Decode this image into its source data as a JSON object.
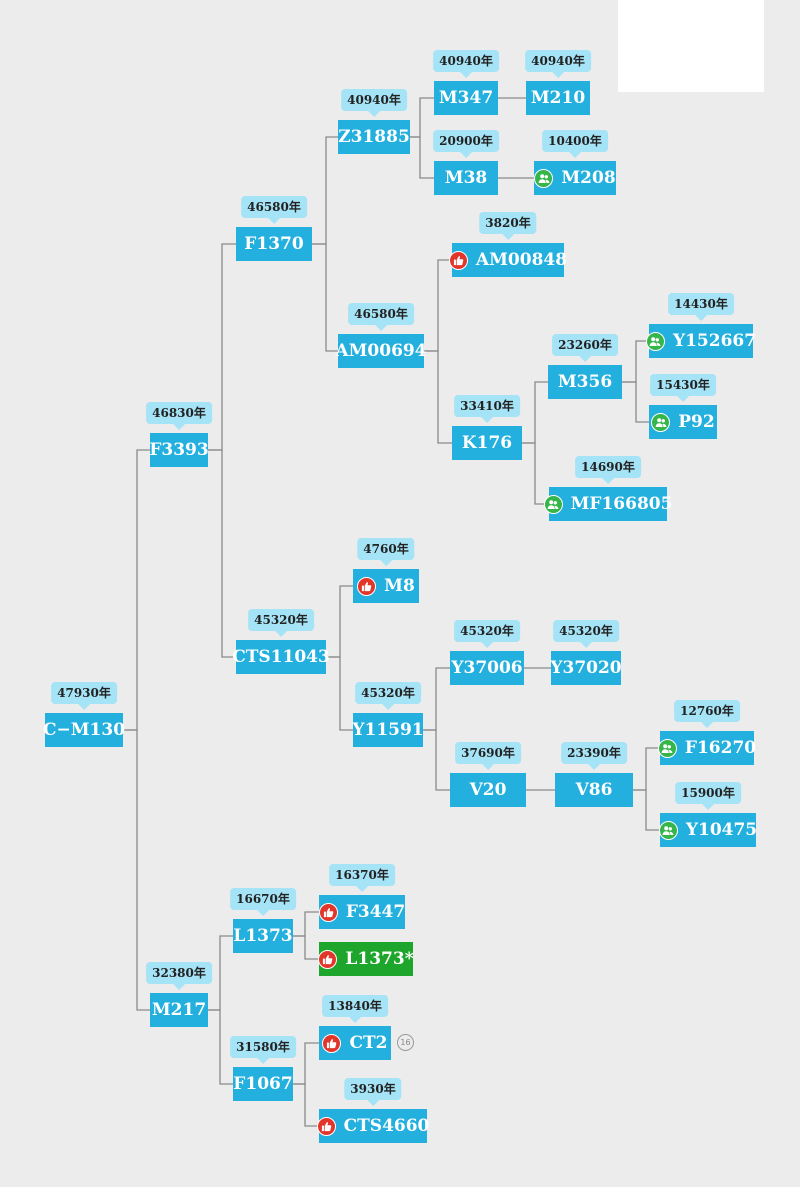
{
  "colors": {
    "node": "#24b0de",
    "highlight": "#1ea52c",
    "age_bubble": "#a5e3f6",
    "like_icon": "#e2362a",
    "group_icon": "#36b54a",
    "line": "#8a8a8a"
  },
  "nodes": [
    {
      "id": "cm130",
      "label": "C−M130",
      "age": "47930年"
    },
    {
      "id": "f3393",
      "label": "F3393",
      "age": "46830年"
    },
    {
      "id": "f1370",
      "label": "F1370",
      "age": "46580年"
    },
    {
      "id": "z31885",
      "label": "Z31885",
      "age": "40940年"
    },
    {
      "id": "m347",
      "label": "M347",
      "age": "40940年"
    },
    {
      "id": "m210",
      "label": "M210",
      "age": "40940年"
    },
    {
      "id": "m38",
      "label": "M38",
      "age": "20900年"
    },
    {
      "id": "m208",
      "label": "M208",
      "age": "10400年",
      "icon": "group-icon"
    },
    {
      "id": "am00694",
      "label": "AM00694",
      "age": "46580年"
    },
    {
      "id": "am00848",
      "label": "AM00848",
      "age": "3820年",
      "icon": "thumbs-up-icon"
    },
    {
      "id": "k176",
      "label": "K176",
      "age": "33410年"
    },
    {
      "id": "m356",
      "label": "M356",
      "age": "23260年"
    },
    {
      "id": "y152667",
      "label": "Y152667",
      "age": "14430年",
      "icon": "group-icon"
    },
    {
      "id": "p92",
      "label": "P92",
      "age": "15430年",
      "icon": "group-icon"
    },
    {
      "id": "mf166805",
      "label": "MF166805",
      "age": "14690年",
      "icon": "group-icon"
    },
    {
      "id": "cts11043",
      "label": "CTS11043",
      "age": "45320年"
    },
    {
      "id": "m8",
      "label": "M8",
      "age": "4760年",
      "icon": "thumbs-up-icon"
    },
    {
      "id": "y11591",
      "label": "Y11591",
      "age": "45320年"
    },
    {
      "id": "y37006",
      "label": "Y37006",
      "age": "45320年"
    },
    {
      "id": "y37020",
      "label": "Y37020",
      "age": "45320年"
    },
    {
      "id": "v20",
      "label": "V20",
      "age": "37690年"
    },
    {
      "id": "v86",
      "label": "V86",
      "age": "23390年"
    },
    {
      "id": "f16270",
      "label": "F16270",
      "age": "12760年",
      "icon": "group-icon"
    },
    {
      "id": "y10475",
      "label": "Y10475",
      "age": "15900年",
      "icon": "group-icon"
    },
    {
      "id": "m217",
      "label": "M217",
      "age": "32380年"
    },
    {
      "id": "l1373",
      "label": "L1373",
      "age": "16670年"
    },
    {
      "id": "f3447",
      "label": "F3447",
      "age": "16370年",
      "icon": "thumbs-up-icon"
    },
    {
      "id": "l1373s",
      "label": "L1373*",
      "icon": "thumbs-up-icon",
      "highlighted": true
    },
    {
      "id": "f1067",
      "label": "F1067",
      "age": "31580年"
    },
    {
      "id": "ct2",
      "label": "CT2",
      "age": "13840年",
      "icon": "thumbs-up-icon",
      "badge": "16"
    },
    {
      "id": "cts4660",
      "label": "CTS4660",
      "age": "3930年",
      "icon": "thumbs-up-icon"
    }
  ],
  "edges": [
    [
      "cm130",
      "f3393"
    ],
    [
      "cm130",
      "m217"
    ],
    [
      "f3393",
      "f1370"
    ],
    [
      "f3393",
      "cts11043"
    ],
    [
      "f1370",
      "z31885"
    ],
    [
      "f1370",
      "am00694"
    ],
    [
      "z31885",
      "m347"
    ],
    [
      "z31885",
      "m38"
    ],
    [
      "m347",
      "m210"
    ],
    [
      "m38",
      "m208"
    ],
    [
      "am00694",
      "am00848"
    ],
    [
      "am00694",
      "k176"
    ],
    [
      "k176",
      "m356"
    ],
    [
      "k176",
      "mf166805"
    ],
    [
      "m356",
      "y152667"
    ],
    [
      "m356",
      "p92"
    ],
    [
      "cts11043",
      "m8"
    ],
    [
      "cts11043",
      "y11591"
    ],
    [
      "y11591",
      "y37006"
    ],
    [
      "y11591",
      "v20"
    ],
    [
      "y37006",
      "y37020"
    ],
    [
      "v20",
      "v86"
    ],
    [
      "v86",
      "f16270"
    ],
    [
      "v86",
      "y10475"
    ],
    [
      "m217",
      "l1373"
    ],
    [
      "m217",
      "f1067"
    ],
    [
      "l1373",
      "f3447"
    ],
    [
      "l1373",
      "l1373s"
    ],
    [
      "f1067",
      "ct2"
    ],
    [
      "f1067",
      "cts4660"
    ]
  ]
}
